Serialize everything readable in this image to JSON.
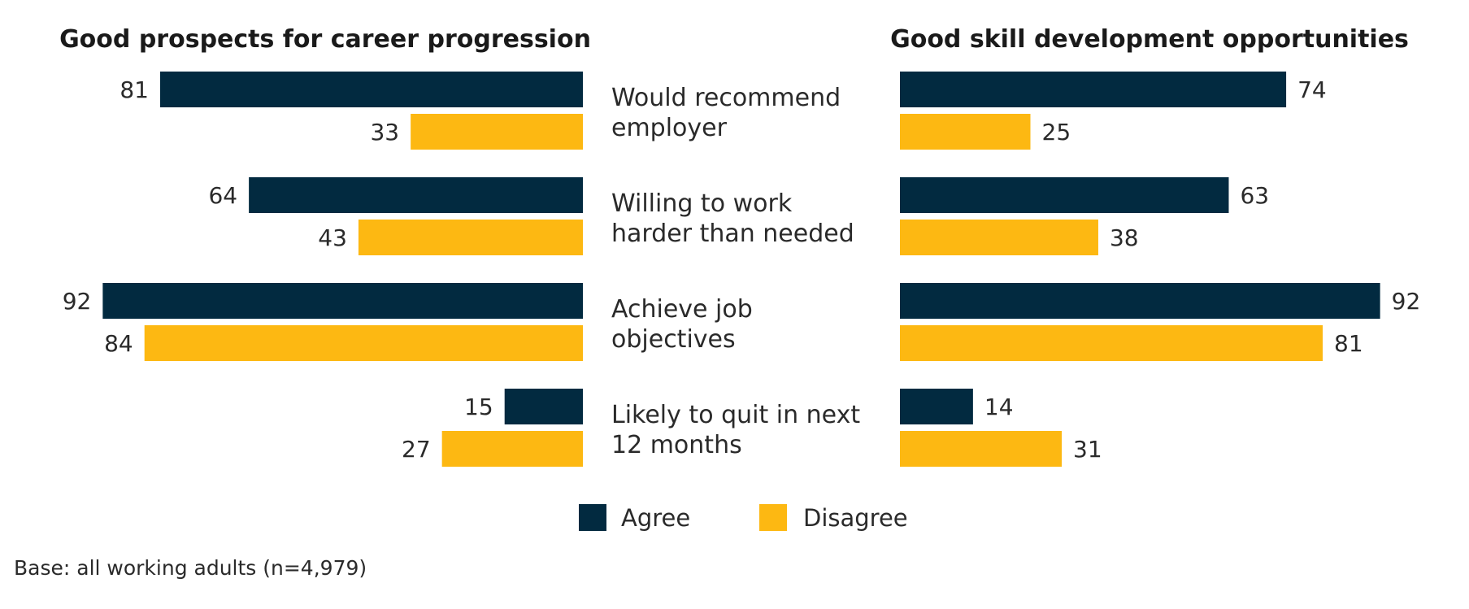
{
  "chart_data": {
    "type": "bar",
    "orientation": "horizontal",
    "layout": "butterfly",
    "categories": [
      [
        "Would recommend",
        "employer"
      ],
      [
        "Willing to work",
        "harder than needed"
      ],
      [
        "Achieve job",
        "objectives"
      ],
      [
        "Likely to quit in next",
        "12 months"
      ]
    ],
    "panels": [
      {
        "title": "Good prospects for career progression",
        "direction": "left",
        "series": [
          {
            "name": "Agree",
            "values": [
              81,
              64,
              92,
              15
            ]
          },
          {
            "name": "Disagree",
            "values": [
              33,
              43,
              84,
              27
            ]
          }
        ]
      },
      {
        "title": "Good skill development opportunities",
        "direction": "right",
        "series": [
          {
            "name": "Agree",
            "values": [
              74,
              63,
              92,
              14
            ]
          },
          {
            "name": "Disagree",
            "values": [
              25,
              38,
              81,
              31
            ]
          }
        ]
      }
    ],
    "xlim": [
      0,
      100
    ],
    "legend": {
      "placement": "bottom-center",
      "entries": [
        {
          "name": "Agree",
          "color": "#022a40"
        },
        {
          "name": "Disagree",
          "color": "#fdb812"
        }
      ]
    },
    "grid": false
  },
  "footnote": "Base: all working adults (n=4,979)"
}
